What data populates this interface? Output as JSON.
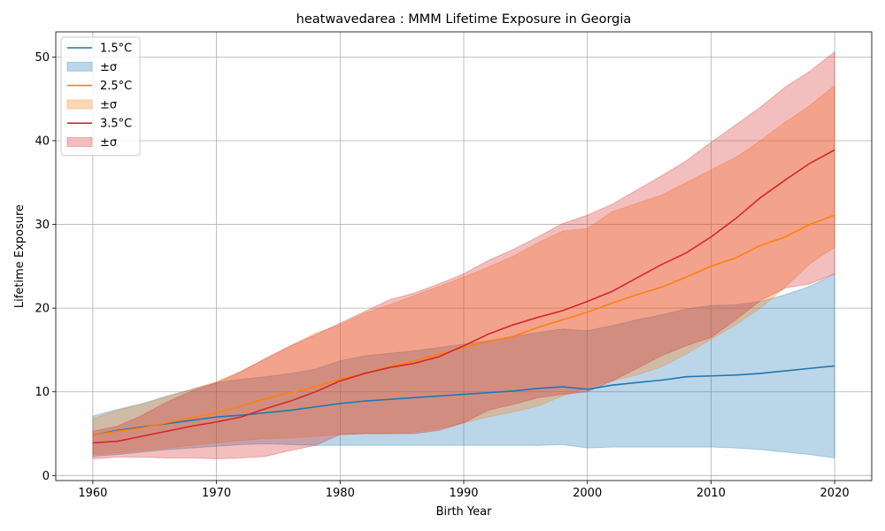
{
  "chart_data": {
    "type": "line",
    "title": "heatwavedarea : MMM Lifetime Exposure in Georgia",
    "xlabel": "Birth Year",
    "ylabel": "Lifetime Exposure",
    "xlim": [
      1957,
      2023
    ],
    "ylim": [
      -0.6,
      53
    ],
    "x_ticks": [
      1960,
      1970,
      1980,
      1990,
      2000,
      2010,
      2020
    ],
    "y_ticks": [
      0,
      10,
      20,
      30,
      40,
      50
    ],
    "grid": true,
    "legend_position": "top-left",
    "band_label": "±σ",
    "x": [
      1960,
      1962,
      1964,
      1966,
      1968,
      1970,
      1972,
      1974,
      1976,
      1978,
      1980,
      1982,
      1984,
      1986,
      1988,
      1990,
      1992,
      1994,
      1996,
      1998,
      2000,
      2002,
      2004,
      2006,
      2008,
      2010,
      2012,
      2014,
      2016,
      2018,
      2020
    ],
    "series": [
      {
        "name": "1.5°C",
        "color": "#1f77b4",
        "values": [
          4.8,
          5.4,
          5.8,
          6.2,
          6.6,
          7.0,
          7.2,
          7.5,
          7.8,
          8.2,
          8.6,
          8.9,
          9.1,
          9.3,
          9.5,
          9.7,
          9.9,
          10.1,
          10.4,
          10.6,
          10.3,
          10.8,
          11.1,
          11.4,
          11.8,
          11.9,
          12.0,
          12.2,
          12.5,
          12.8,
          13.1
        ],
        "lower": [
          2.3,
          2.5,
          2.8,
          3.1,
          3.3,
          3.5,
          3.7,
          3.8,
          3.7,
          3.6,
          3.6,
          3.6,
          3.6,
          3.6,
          3.6,
          3.6,
          3.6,
          3.6,
          3.6,
          3.7,
          3.3,
          3.4,
          3.4,
          3.4,
          3.4,
          3.4,
          3.3,
          3.1,
          2.8,
          2.5,
          2.1
        ],
        "upper": [
          7.1,
          7.9,
          8.6,
          9.5,
          10.3,
          11.1,
          11.5,
          11.8,
          12.2,
          12.7,
          13.7,
          14.3,
          14.6,
          14.9,
          15.3,
          15.7,
          16.1,
          16.6,
          17.1,
          17.5,
          17.3,
          17.9,
          18.6,
          19.2,
          19.9,
          20.3,
          20.4,
          20.8,
          21.6,
          22.6,
          24.1
        ]
      },
      {
        "name": "2.5°C",
        "color": "#ff7f0e",
        "values": [
          4.8,
          5.3,
          5.7,
          6.3,
          6.9,
          7.5,
          8.3,
          9.2,
          9.9,
          10.6,
          11.5,
          12.2,
          13.0,
          13.7,
          14.5,
          15.3,
          16.0,
          16.6,
          17.7,
          18.6,
          19.5,
          20.6,
          21.6,
          22.5,
          23.7,
          25.0,
          26.0,
          27.5,
          28.5,
          30.0,
          31.1
        ],
        "lower": [
          2.5,
          2.7,
          3.0,
          3.3,
          3.6,
          3.9,
          4.2,
          4.4,
          4.5,
          4.7,
          4.9,
          5.0,
          5.0,
          5.2,
          5.6,
          6.3,
          7.0,
          7.6,
          8.3,
          9.5,
          10.5,
          11.3,
          12.0,
          13.0,
          14.5,
          16.3,
          18.0,
          20.0,
          22.5,
          25.3,
          27.3
        ],
        "upper": [
          6.8,
          7.8,
          8.5,
          9.4,
          10.3,
          11.2,
          12.5,
          14.0,
          15.5,
          17.0,
          18.0,
          19.4,
          20.4,
          21.5,
          22.6,
          23.7,
          24.9,
          26.2,
          27.8,
          29.2,
          29.5,
          31.5,
          32.5,
          33.5,
          35.0,
          36.5,
          38.0,
          40.0,
          42.2,
          44.2,
          46.6
        ]
      },
      {
        "name": "3.5°C",
        "color": "#d62728",
        "values": [
          3.9,
          4.1,
          4.7,
          5.3,
          5.9,
          6.4,
          7.0,
          8.0,
          8.9,
          10.0,
          11.3,
          12.2,
          12.9,
          13.4,
          14.2,
          15.5,
          16.9,
          18.0,
          18.9,
          19.7,
          20.8,
          22.0,
          23.6,
          25.2,
          26.6,
          28.5,
          30.7,
          33.2,
          35.3,
          37.3,
          38.9
        ],
        "lower": [
          2.0,
          2.2,
          2.2,
          2.1,
          2.1,
          2.0,
          2.1,
          2.3,
          3.0,
          3.6,
          4.9,
          5.0,
          5.0,
          5.0,
          5.4,
          6.3,
          7.8,
          8.5,
          9.3,
          9.7,
          10.0,
          11.3,
          12.8,
          14.3,
          15.5,
          16.5,
          18.6,
          20.9,
          22.4,
          22.9,
          24.1
        ],
        "upper": [
          5.3,
          5.9,
          7.2,
          8.8,
          10.1,
          11.1,
          12.4,
          14.0,
          15.5,
          16.8,
          18.2,
          19.6,
          21.0,
          21.8,
          22.9,
          24.1,
          25.7,
          27.0,
          28.5,
          30.1,
          31.1,
          32.4,
          34.1,
          35.8,
          37.6,
          39.8,
          41.9,
          44.0,
          46.4,
          48.3,
          50.6
        ]
      }
    ]
  }
}
